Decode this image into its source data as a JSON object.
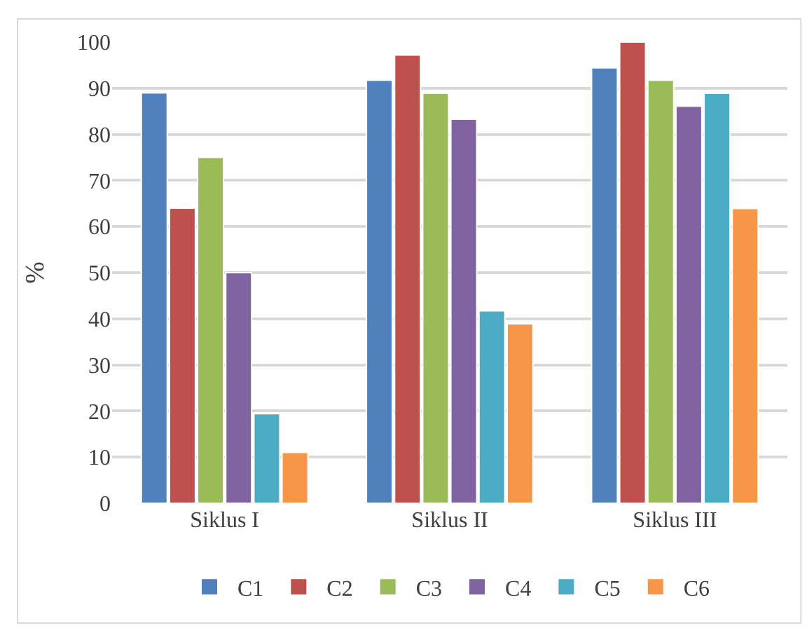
{
  "chart_data": {
    "type": "bar",
    "ylabel": "%",
    "categories": [
      "Siklus I",
      "Siklus II",
      "Siklus III"
    ],
    "series": [
      {
        "name": "C1",
        "color": "#4f81bd",
        "values": [
          89,
          91.7,
          94.4
        ]
      },
      {
        "name": "C2",
        "color": "#c0504d",
        "values": [
          64,
          97.2,
          100
        ]
      },
      {
        "name": "C3",
        "color": "#9bbb59",
        "values": [
          75,
          88.9,
          91.7
        ]
      },
      {
        "name": "C4",
        "color": "#8064a2",
        "values": [
          50,
          83.3,
          86.1
        ]
      },
      {
        "name": "C5",
        "color": "#4bacc6",
        "values": [
          19.4,
          41.7,
          88.9
        ]
      },
      {
        "name": "C6",
        "color": "#f79646",
        "values": [
          11,
          38.9,
          63.9
        ]
      }
    ],
    "ylim": [
      0,
      100
    ],
    "yticks": [
      0,
      10,
      20,
      30,
      40,
      50,
      60,
      70,
      80,
      90,
      100
    ],
    "grid": "y",
    "legend": "bottom"
  }
}
